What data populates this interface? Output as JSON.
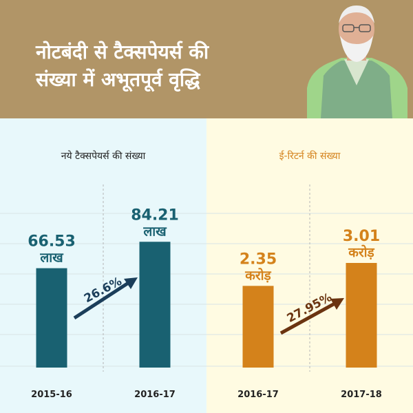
{
  "header": {
    "title_line1": "नोटबंदी से टैक्सपेयर्स की",
    "title_line2": "संख्या में अभूतपूर्व वृद्धि"
  },
  "colors": {
    "header_bg": "#b19567",
    "teal": "#196171",
    "orange": "#d4821b",
    "arrow_left": "#1b3e5a",
    "arrow_right": "#6b3410"
  },
  "chart_data": [
    {
      "type": "bar",
      "title": "नये टैक्सपेयर्स की संख्या",
      "categories": [
        "2015-16",
        "2016-17"
      ],
      "values": [
        66.53,
        84.21
      ],
      "value_labels": [
        "66.53",
        "84.21"
      ],
      "unit": "लाख",
      "growth_label": "26.6%",
      "color": "#196171"
    },
    {
      "type": "bar",
      "title": "ई-रिटर्न की संख्या",
      "categories": [
        "2016-17",
        "2017-18"
      ],
      "values": [
        2.35,
        3.01
      ],
      "value_labels": [
        "2.35",
        "3.01"
      ],
      "unit": "करोड़",
      "growth_label": "27.95%",
      "color": "#d4821b"
    }
  ]
}
